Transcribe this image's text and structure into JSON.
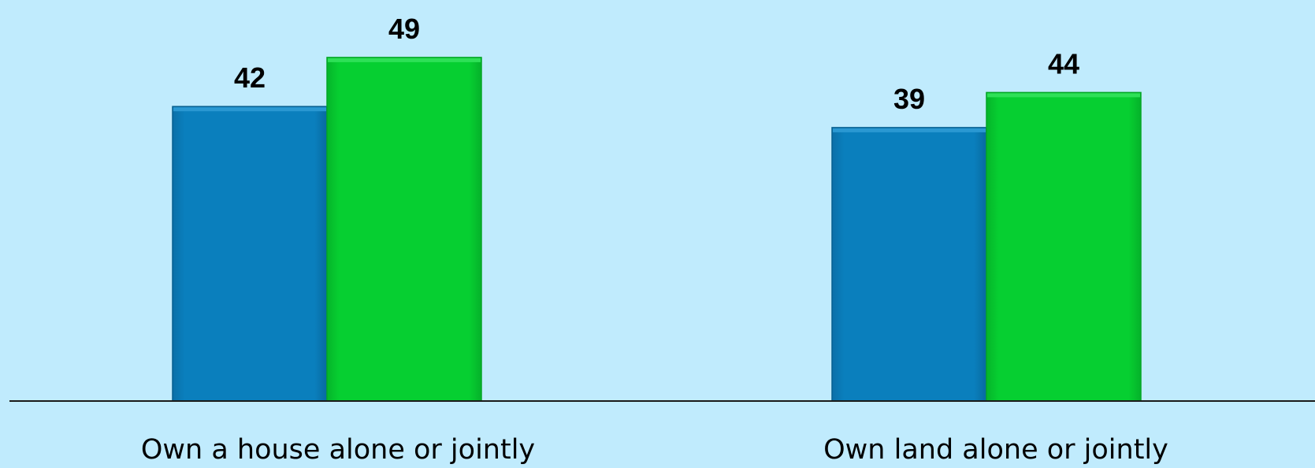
{
  "chart_data": {
    "type": "bar",
    "categories": [
      "Own a house alone or jointly",
      "Own land alone or jointly"
    ],
    "series": [
      {
        "values": [
          42,
          39
        ],
        "color": "#0a7fbd"
      },
      {
        "values": [
          49,
          44
        ],
        "color": "#06cf31"
      }
    ],
    "ylim": [
      0,
      55
    ],
    "grid": false,
    "legend": "none"
  },
  "colors": {
    "background": "#c0ebfd",
    "baseline": "#1a1a1a"
  }
}
